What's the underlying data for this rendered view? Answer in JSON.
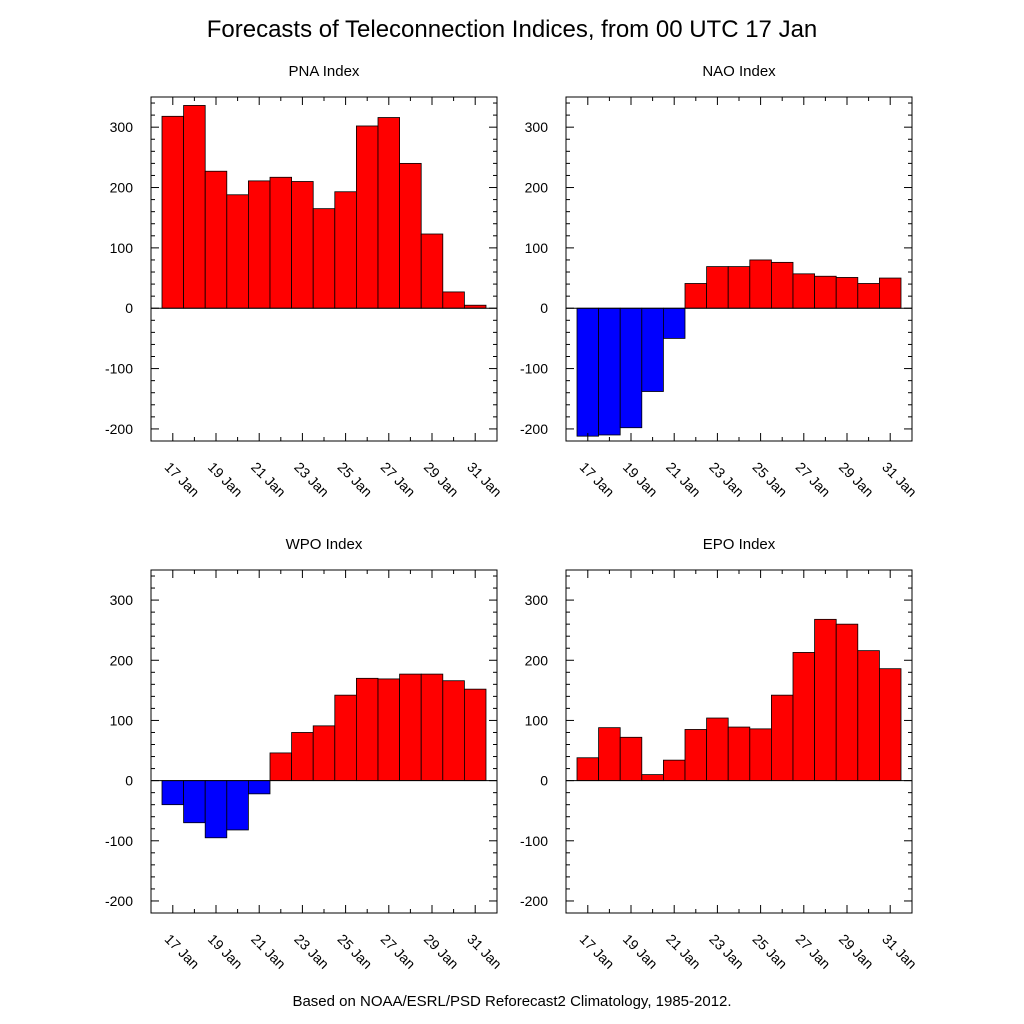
{
  "title": "Forecasts of Teleconnection Indices, from 00 UTC 17 Jan",
  "footer": "Based on NOAA/ESRL/PSD Reforecast2 Climatology, 1985-2012.",
  "colors": {
    "positive": "#ff0000",
    "negative": "#0000ff",
    "axis": "#000000",
    "bar_edge": "#000000"
  },
  "chart_data": [
    {
      "type": "bar",
      "title": "PNA Index",
      "categories": [
        "17 Jan",
        "18 Jan",
        "19 Jan",
        "20 Jan",
        "21 Jan",
        "22 Jan",
        "23 Jan",
        "24 Jan",
        "25 Jan",
        "26 Jan",
        "27 Jan",
        "28 Jan",
        "29 Jan",
        "30 Jan",
        "31 Jan"
      ],
      "values": [
        318,
        336,
        227,
        188,
        211,
        217,
        210,
        165,
        193,
        302,
        316,
        240,
        123,
        27,
        5
      ],
      "tick_labels": [
        "17 Jan",
        "19 Jan",
        "21 Jan",
        "23 Jan",
        "25 Jan",
        "27 Jan",
        "29 Jan",
        "31 Jan"
      ],
      "yticks": [
        -200,
        -100,
        0,
        100,
        200,
        300
      ],
      "ylim": [
        -220,
        350
      ],
      "xlabel": "",
      "ylabel": ""
    },
    {
      "type": "bar",
      "title": "NAO Index",
      "categories": [
        "17 Jan",
        "18 Jan",
        "19 Jan",
        "20 Jan",
        "21 Jan",
        "22 Jan",
        "23 Jan",
        "24 Jan",
        "25 Jan",
        "26 Jan",
        "27 Jan",
        "28 Jan",
        "29 Jan",
        "30 Jan",
        "31 Jan"
      ],
      "values": [
        -212,
        -210,
        -198,
        -138,
        -50,
        41,
        69,
        69,
        80,
        76,
        57,
        53,
        51,
        41,
        50
      ],
      "tick_labels": [
        "17 Jan",
        "19 Jan",
        "21 Jan",
        "23 Jan",
        "25 Jan",
        "27 Jan",
        "29 Jan",
        "31 Jan"
      ],
      "yticks": [
        -200,
        -100,
        0,
        100,
        200,
        300
      ],
      "ylim": [
        -220,
        350
      ],
      "xlabel": "",
      "ylabel": ""
    },
    {
      "type": "bar",
      "title": "WPO Index",
      "categories": [
        "17 Jan",
        "18 Jan",
        "19 Jan",
        "20 Jan",
        "21 Jan",
        "22 Jan",
        "23 Jan",
        "24 Jan",
        "25 Jan",
        "26 Jan",
        "27 Jan",
        "28 Jan",
        "29 Jan",
        "30 Jan",
        "31 Jan"
      ],
      "values": [
        -40,
        -70,
        -95,
        -82,
        -22,
        46,
        80,
        91,
        142,
        170,
        169,
        177,
        177,
        166,
        152
      ],
      "tick_labels": [
        "17 Jan",
        "19 Jan",
        "21 Jan",
        "23 Jan",
        "25 Jan",
        "27 Jan",
        "29 Jan",
        "31 Jan"
      ],
      "yticks": [
        -200,
        -100,
        0,
        100,
        200,
        300
      ],
      "ylim": [
        -220,
        350
      ],
      "xlabel": "",
      "ylabel": ""
    },
    {
      "type": "bar",
      "title": "EPO Index",
      "categories": [
        "17 Jan",
        "18 Jan",
        "19 Jan",
        "20 Jan",
        "21 Jan",
        "22 Jan",
        "23 Jan",
        "24 Jan",
        "25 Jan",
        "26 Jan",
        "27 Jan",
        "28 Jan",
        "29 Jan",
        "30 Jan",
        "31 Jan"
      ],
      "values": [
        38,
        88,
        72,
        10,
        34,
        85,
        104,
        89,
        86,
        142,
        213,
        268,
        260,
        216,
        186
      ],
      "tick_labels": [
        "17 Jan",
        "19 Jan",
        "21 Jan",
        "23 Jan",
        "25 Jan",
        "27 Jan",
        "29 Jan",
        "31 Jan"
      ],
      "yticks": [
        -200,
        -100,
        0,
        100,
        200,
        300
      ],
      "ylim": [
        -220,
        350
      ],
      "xlabel": "",
      "ylabel": ""
    }
  ]
}
